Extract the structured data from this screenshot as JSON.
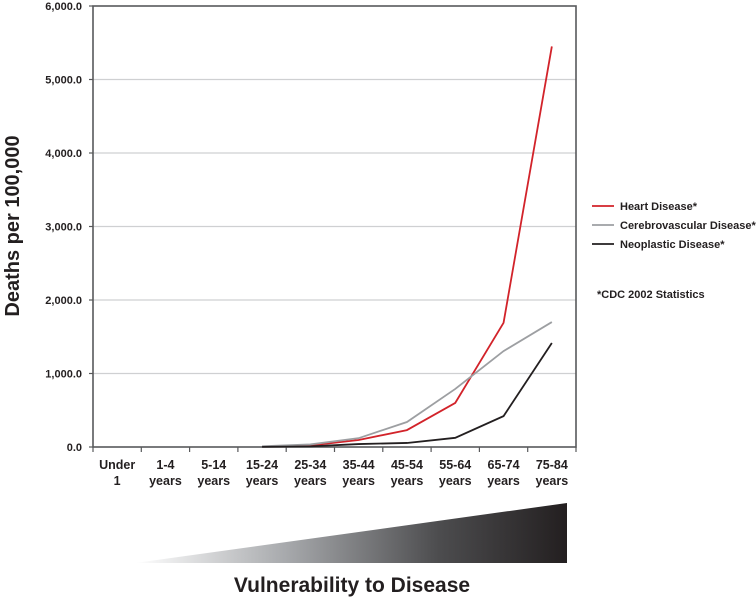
{
  "chart_data": {
    "type": "line",
    "title": "",
    "xlabel": "",
    "ylabel": "Deaths per 100,000",
    "ylim": [
      0,
      6000
    ],
    "yticks": [
      0,
      1000,
      2000,
      3000,
      4000,
      5000,
      6000
    ],
    "ytick_labels": [
      "0.0",
      "1,000.0",
      "2,000.0",
      "3,000.0",
      "4,000.0",
      "5,000.0",
      "6,000.0"
    ],
    "grid": "horizontal",
    "categories": [
      [
        "Under",
        "1"
      ],
      [
        "1-4",
        "years"
      ],
      [
        "5-14",
        "years"
      ],
      [
        "15-24",
        "years"
      ],
      [
        "25-34",
        "years"
      ],
      [
        "35-44",
        "years"
      ],
      [
        "45-54",
        "years"
      ],
      [
        "55-64",
        "years"
      ],
      [
        "65-74",
        "years"
      ],
      [
        "75-84",
        "years"
      ]
    ],
    "series": [
      {
        "name": "Heart Disease*",
        "color": "#d2232a",
        "values": [
          null,
          null,
          null,
          5,
          20,
          95,
          230,
          600,
          1690,
          5450
        ]
      },
      {
        "name": "Cerebrovascular Disease*",
        "color": "#9d9fa2",
        "values": [
          null,
          null,
          null,
          10,
          35,
          120,
          340,
          790,
          1305,
          1700
        ]
      },
      {
        "name": "Neoplastic Disease*",
        "color": "#231f20",
        "values": [
          null,
          null,
          null,
          2,
          8,
          40,
          55,
          125,
          420,
          1415
        ]
      }
    ],
    "legend_position": "right",
    "annotation": "*CDC 2002 Statistics",
    "wedge_label": "Vulnerability to Disease"
  }
}
